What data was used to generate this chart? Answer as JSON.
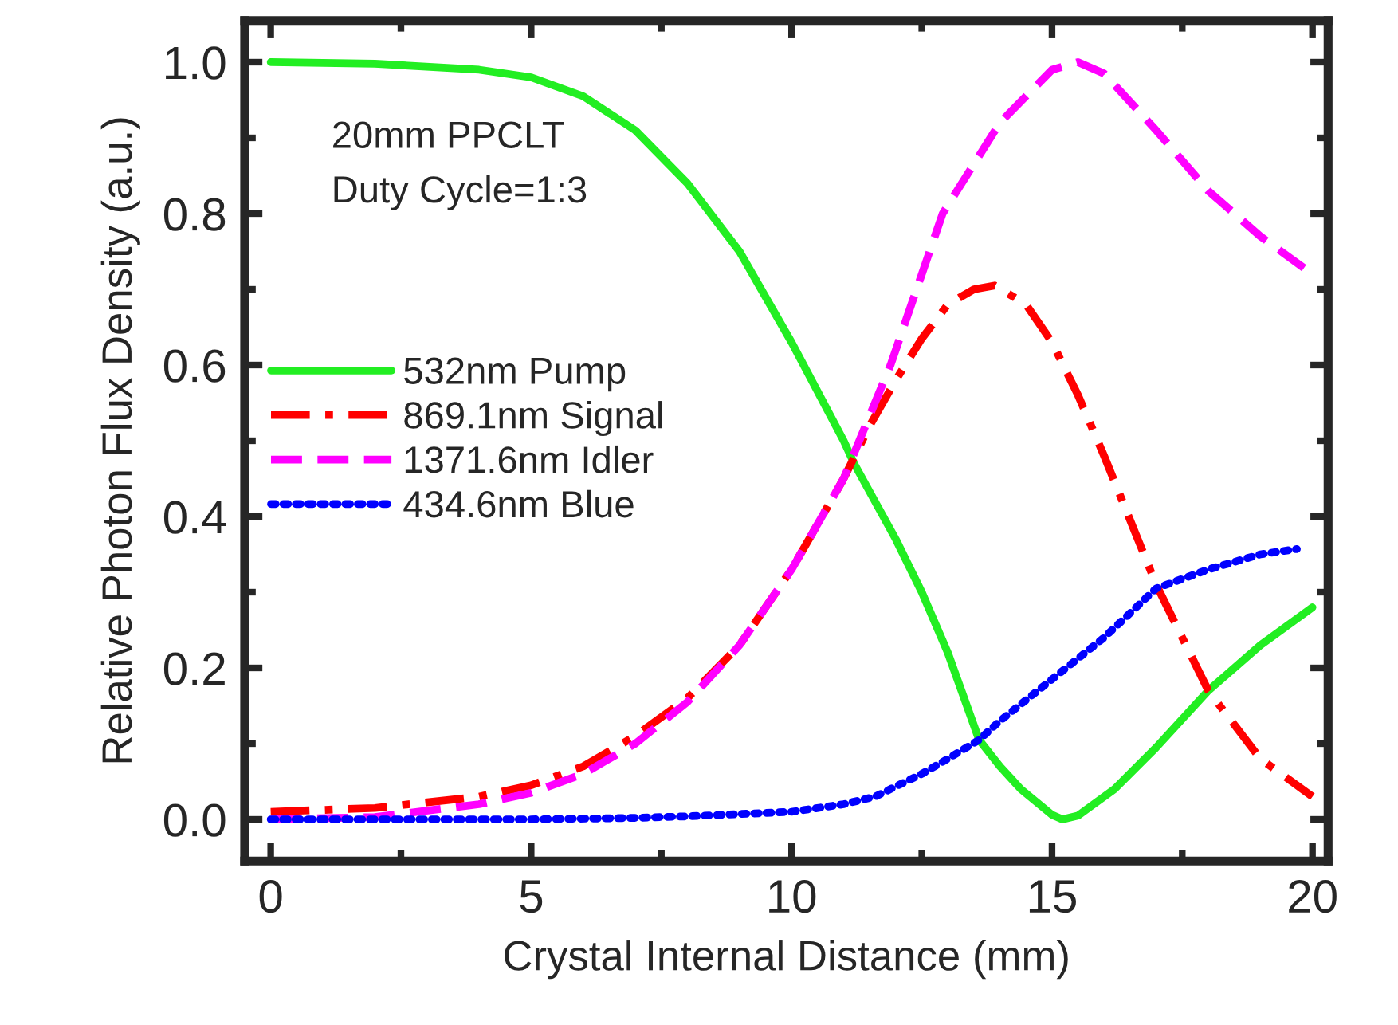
{
  "chart_data": {
    "type": "line",
    "xlabel": "Crystal Internal Distance (mm)",
    "ylabel": "Relative Photon Flux Density (a.u.)",
    "annotations": [
      "20mm PPCLT",
      "Duty Cycle=1:3"
    ],
    "xlim": [
      -0.5,
      20.3
    ],
    "ylim": [
      -0.055,
      1.055
    ],
    "xticks": [
      0,
      5,
      10,
      15,
      20
    ],
    "yticks": [
      {
        "value": 0,
        "label": "0.0"
      },
      {
        "value": 0.2,
        "label": "0.2"
      },
      {
        "value": 0.4,
        "label": "0.4"
      },
      {
        "value": 0.6,
        "label": "0.6"
      },
      {
        "value": 0.8,
        "label": "0.8"
      },
      {
        "value": 1.0,
        "label": "1.0"
      }
    ],
    "grid": false,
    "legend": "left",
    "marker": "none",
    "series": [
      {
        "name": "532nm Pump",
        "color": "#22ee22",
        "line_style": "solid",
        "x": [
          0,
          2,
          4,
          5,
          6,
          7,
          8,
          9,
          10,
          11,
          11.2,
          12,
          12.5,
          13,
          13.6,
          14,
          14.4,
          15,
          15.2,
          15.5,
          16,
          16.2,
          17,
          18,
          19,
          20
        ],
        "values": [
          1.0,
          0.998,
          0.99,
          0.98,
          0.955,
          0.91,
          0.84,
          0.75,
          0.63,
          0.5,
          0.47,
          0.37,
          0.3,
          0.22,
          0.105,
          0.07,
          0.04,
          0.006,
          0.0,
          0.005,
          0.03,
          0.04,
          0.095,
          0.17,
          0.23,
          0.28
        ]
      },
      {
        "name": "869.1nm Signal",
        "color": "#ff0000",
        "line_style": "dashdot",
        "x": [
          0,
          2,
          4,
          5,
          6,
          7,
          8,
          9,
          10,
          11,
          11.5,
          12,
          12.5,
          13,
          13.5,
          13.9,
          14.5,
          15,
          15.5,
          16,
          17,
          18,
          19,
          20
        ],
        "values": [
          0.01,
          0.015,
          0.03,
          0.045,
          0.07,
          0.11,
          0.16,
          0.23,
          0.33,
          0.45,
          0.52,
          0.58,
          0.635,
          0.68,
          0.7,
          0.705,
          0.68,
          0.63,
          0.56,
          0.48,
          0.31,
          0.17,
          0.08,
          0.03
        ]
      },
      {
        "name": "1371.6nm Idler",
        "color": "#ff00ff",
        "line_style": "dashed",
        "x": [
          0,
          2,
          4,
          5,
          6,
          7,
          8,
          9,
          10,
          11,
          11.9,
          12.9,
          14,
          15,
          15.5,
          16,
          17,
          18,
          19,
          20
        ],
        "values": [
          0.0,
          0.003,
          0.02,
          0.035,
          0.06,
          0.1,
          0.155,
          0.23,
          0.33,
          0.45,
          0.6,
          0.8,
          0.92,
          0.99,
          1.0,
          0.985,
          0.91,
          0.83,
          0.77,
          0.72
        ]
      },
      {
        "name": "434.6nm Blue",
        "color": "#0000ff",
        "line_style": "dotted",
        "x": [
          0,
          5,
          7,
          8,
          9,
          10,
          11,
          11.6,
          12.5,
          13,
          13.6,
          14,
          15,
          16,
          17,
          18,
          19,
          19.7
        ],
        "values": [
          0.0,
          0.0,
          0.002,
          0.004,
          0.007,
          0.01,
          0.02,
          0.03,
          0.06,
          0.08,
          0.105,
          0.13,
          0.185,
          0.24,
          0.305,
          0.33,
          0.35,
          0.357
        ]
      }
    ]
  }
}
